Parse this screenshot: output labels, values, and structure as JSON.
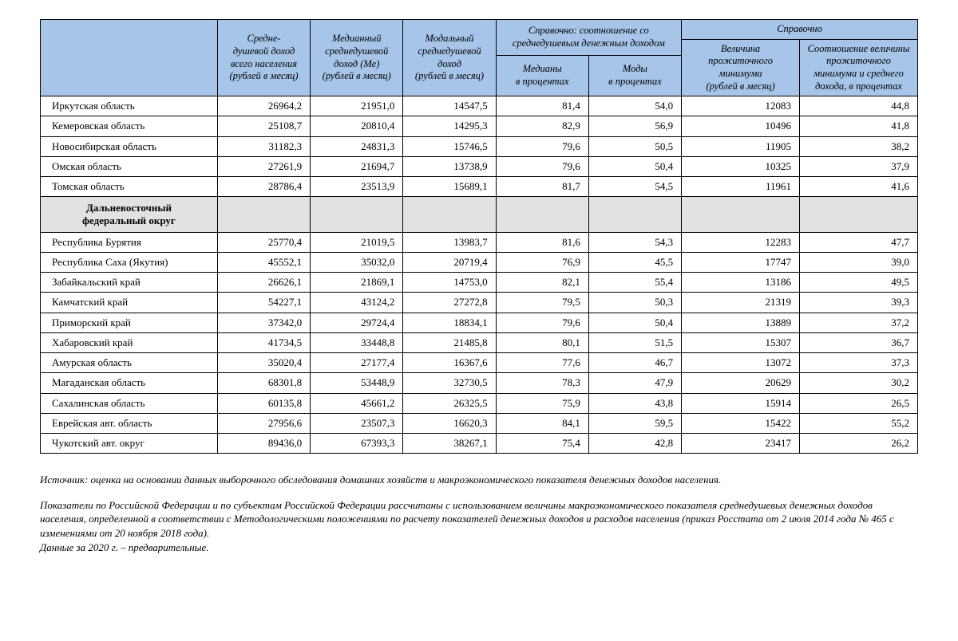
{
  "table": {
    "header_bg": "#a6c5e8",
    "section_bg": "#e2e2e2",
    "border_color": "#000000",
    "columns": {
      "region_blank": "",
      "col1": "Средне-\nдушевой доход\nвсего населения\n(рублей в месяц)",
      "col2": "Медианный\nсреднедушевой\nдоход (Ме)\n(рублей в месяц)",
      "col3": "Модальный\nсреднедушевой\nдоход\n(рублей в месяц)",
      "group1": "Справочно: соотношение со\nсреднедушевым денежным доходом",
      "group1_sub1": "Медианы\nв процентах",
      "group1_sub2": "Моды\nв процентах",
      "group2": "Справочно",
      "group2_sub1": "Величина\nпрожиточного\nминимума\n(рублей в месяц)",
      "group2_sub2": "Соотношение величины\nпрожиточного\nминимума и среднего\nдохода, в процентах"
    },
    "rows": [
      {
        "type": "data",
        "region": "Иркутская область",
        "v": [
          "26964,2",
          "21951,0",
          "14547,5",
          "81,4",
          "54,0",
          "12083",
          "44,8"
        ]
      },
      {
        "type": "data",
        "region": "Кемеровская область",
        "v": [
          "25108,7",
          "20810,4",
          "14295,3",
          "82,9",
          "56,9",
          "10496",
          "41,8"
        ]
      },
      {
        "type": "data",
        "region": "Новосибирская область",
        "v": [
          "31182,3",
          "24831,3",
          "15746,5",
          "79,6",
          "50,5",
          "11905",
          "38,2"
        ]
      },
      {
        "type": "data",
        "region": "Омская область",
        "v": [
          "27261,9",
          "21694,7",
          "13738,9",
          "79,6",
          "50,4",
          "10325",
          "37,9"
        ]
      },
      {
        "type": "data",
        "region": "Томская область",
        "v": [
          "28786,4",
          "23513,9",
          "15689,1",
          "81,7",
          "54,5",
          "11961",
          "41,6"
        ]
      },
      {
        "type": "section",
        "region": "Дальневосточный\nфедеральный округ"
      },
      {
        "type": "data",
        "region": "Республика Бурятия",
        "v": [
          "25770,4",
          "21019,5",
          "13983,7",
          "81,6",
          "54,3",
          "12283",
          "47,7"
        ]
      },
      {
        "type": "data",
        "region": "Республика Саха (Якутия)",
        "v": [
          "45552,1",
          "35032,0",
          "20719,4",
          "76,9",
          "45,5",
          "17747",
          "39,0"
        ]
      },
      {
        "type": "data",
        "region": "Забайкальский край",
        "v": [
          "26626,1",
          "21869,1",
          "14753,0",
          "82,1",
          "55,4",
          "13186",
          "49,5"
        ]
      },
      {
        "type": "data",
        "region": "Камчатский край",
        "v": [
          "54227,1",
          "43124,2",
          "27272,8",
          "79,5",
          "50,3",
          "21319",
          "39,3"
        ]
      },
      {
        "type": "data",
        "region": "Приморский край",
        "v": [
          "37342,0",
          "29724,4",
          "18834,1",
          "79,6",
          "50,4",
          "13889",
          "37,2"
        ]
      },
      {
        "type": "data",
        "region": "Хабаровский край",
        "v": [
          "41734,5",
          "33448,8",
          "21485,8",
          "80,1",
          "51,5",
          "15307",
          "36,7"
        ]
      },
      {
        "type": "data",
        "region": "Амурская область",
        "v": [
          "35020,4",
          "27177,4",
          "16367,6",
          "77,6",
          "46,7",
          "13072",
          "37,3"
        ]
      },
      {
        "type": "data",
        "region": "Магаданская область",
        "v": [
          "68301,8",
          "53448,9",
          "32730,5",
          "78,3",
          "47,9",
          "20629",
          "30,2"
        ]
      },
      {
        "type": "data",
        "region": "Сахалинская область",
        "v": [
          "60135,8",
          "45661,2",
          "26325,5",
          "75,9",
          "43,8",
          "15914",
          "26,5"
        ]
      },
      {
        "type": "data",
        "region": "Еврейская авт. область",
        "v": [
          "27956,6",
          "23507,3",
          "16620,3",
          "84,1",
          "59,5",
          "15422",
          "55,2"
        ]
      },
      {
        "type": "data",
        "region": "Чукотский авт. округ",
        "v": [
          "89436,0",
          "67393,3",
          "38267,1",
          "75,4",
          "42,8",
          "23417",
          "26,2"
        ]
      }
    ]
  },
  "footnotes": {
    "p1": "Источник: оценка на основании данных выборочного обследования домашних хозяйств и макроэкономического показателя денежных доходов населения.",
    "p2": "Показатели по Российской Федерации и по субъектам Российской Федерации рассчитаны с использованием величины макроэкономического показателя среднедушевых денежных доходов населения, определенной в соответствии с Методологическими положениями по расчету показателей денежных  доходов и расходов населения (приказ Росстата от 2 июля 2014 года  № 465 с изменениями от 20 ноября 2018 года).",
    "p3": "Данные за 2020 г. – предварительные."
  }
}
